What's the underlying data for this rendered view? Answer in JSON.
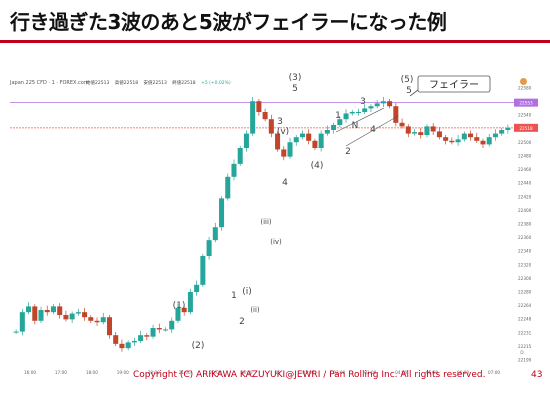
{
  "slide": {
    "title": "行き過ぎた3波のあと5波がフェイラーになった例",
    "footer": "Copyright (C) ARIKAWA KAZUYUKI@JEWRI / Pan Rolling Inc. All rights reserved.",
    "page_number": "43"
  },
  "chart_header": {
    "symbol": "Japan 225 CFD · 1 · FOREX.com",
    "ohlc": [
      "始値22513",
      "高値22518",
      "安値22513",
      "終値22518"
    ],
    "change": "+5 (+0.02%)"
  },
  "colors": {
    "up": "#26a69a",
    "down": "#c1452a",
    "resistance_line": "#b070e0",
    "price_line": "#ef5350",
    "title_rule": "#c0001a",
    "annotation": "#444444"
  },
  "chart_data": {
    "type": "candlestick",
    "x_tick_labels": [
      "16:00",
      "17:00",
      "18:00",
      "19:00",
      "20:00",
      "21:00",
      "22:00",
      "23:00",
      "16",
      "01:00",
      "02:00",
      "03:00",
      "04:00",
      "05:00",
      "06:00",
      "07:00"
    ],
    "y_tick_labels": [
      "22580",
      "22560",
      "22540",
      "22520",
      "22500",
      "22480",
      "22460",
      "22440",
      "22420",
      "22400",
      "22380",
      "22360",
      "22340",
      "22320",
      "22300",
      "22280",
      "22264",
      "22248",
      "22231",
      "22215",
      "22199"
    ],
    "ylim": [
      22190,
      22590
    ],
    "horizontal_lines": [
      {
        "name": "resistance",
        "value": 22553,
        "label": "22553"
      },
      {
        "name": "current",
        "value": 22518,
        "label": "22518"
      }
    ],
    "close_path": [
      22235,
      22262,
      22270,
      22250,
      22265,
      22262,
      22270,
      22258,
      22252,
      22260,
      22262,
      22255,
      22250,
      22248,
      22255,
      22230,
      22218,
      22212,
      22220,
      22222,
      22230,
      22228,
      22240,
      22238,
      22238,
      22250,
      22268,
      22262,
      22290,
      22300,
      22340,
      22362,
      22380,
      22420,
      22450,
      22468,
      22490,
      22510,
      22555,
      22540,
      22530,
      22510,
      22488,
      22478,
      22498,
      22505,
      22510,
      22500,
      22490,
      22510,
      22515,
      22522,
      22530,
      22538,
      22540,
      22540,
      22545,
      22548,
      22552,
      22555,
      22548,
      22525,
      22520,
      22510,
      22512,
      22508,
      22520,
      22513,
      22505,
      22500,
      22498,
      22502,
      22510,
      22505,
      22500,
      22495,
      22505,
      22510,
      22515,
      22518
    ],
    "wave_labels": [
      "(1)",
      "(2)",
      "(3)",
      "5",
      "3",
      "(v)",
      "4",
      "(iii)",
      "(iv)",
      "1",
      "(i)",
      "(ii)",
      "2",
      "(4)",
      "1",
      "N",
      "3",
      "4",
      "2",
      "(5)",
      "5"
    ],
    "callout": "フェイラー",
    "corner_mark": "D"
  }
}
